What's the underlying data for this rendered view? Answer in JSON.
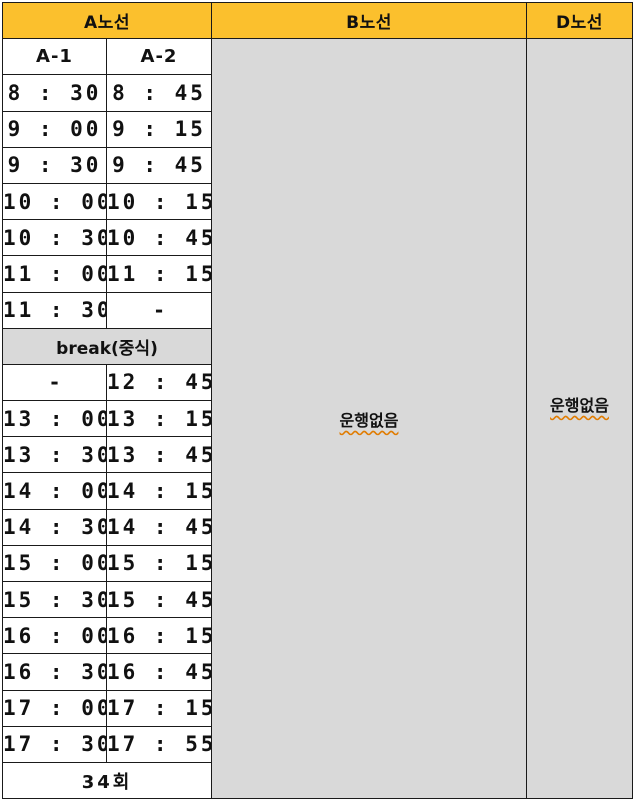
{
  "headers": {
    "a_route": "A노선",
    "b_route": "B노선",
    "d_route": "D노선"
  },
  "sub_headers": {
    "a1": "A-1",
    "a2": "A-2"
  },
  "morning": [
    [
      "8 : 30",
      "8 : 45"
    ],
    [
      "9 : 00",
      "9 : 15"
    ],
    [
      "9 : 30",
      "9 : 45"
    ],
    [
      "10 : 00",
      "10 : 15"
    ],
    [
      "10 : 30",
      "10 : 45"
    ],
    [
      "11 : 00",
      "11 : 15"
    ],
    [
      "11 : 30",
      "-"
    ]
  ],
  "break_label": "break(중식)",
  "afternoon": [
    [
      "-",
      "12 : 45"
    ],
    [
      "13 : 00",
      "13 : 15"
    ],
    [
      "13 : 30",
      "13 : 45"
    ],
    [
      "14 : 00",
      "14 : 15"
    ],
    [
      "14 : 30",
      "14 : 45"
    ],
    [
      "15 : 00",
      "15 : 15"
    ],
    [
      "15 : 30",
      "15 : 45"
    ],
    [
      "16 : 00",
      "16 : 15"
    ],
    [
      "16 : 30",
      "16 : 45"
    ],
    [
      "17 : 00",
      "17 : 15"
    ],
    [
      "17 : 30",
      "17 : 55"
    ]
  ],
  "total_runs": "34회",
  "b_status": "운행없음",
  "d_status": "운행없음",
  "colors": {
    "header_bg": "#fbc02d",
    "no_service_bg": "#d9d9d9",
    "border": "#1a1a1a"
  }
}
